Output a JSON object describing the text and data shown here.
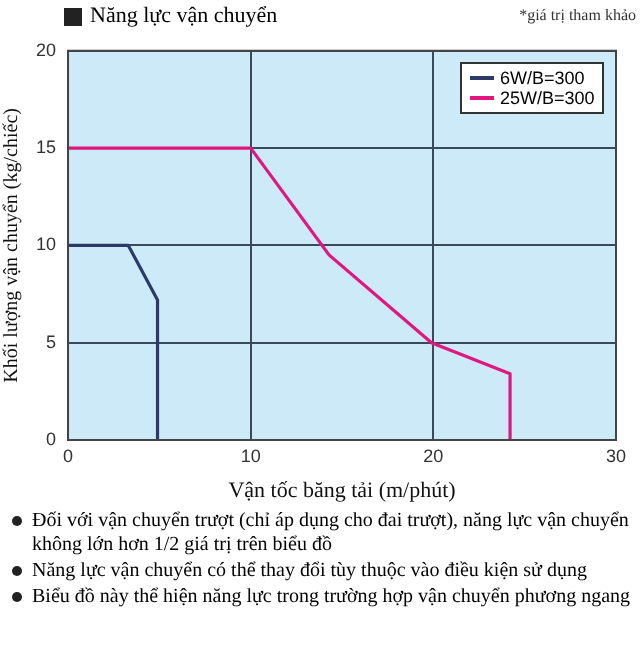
{
  "chart_data": {
    "type": "line",
    "title": "Năng lực vận chuyển",
    "xlabel": "Vận tốc băng tải (m/phút)",
    "ylabel": "Khối lượng vận chuyển (kg/chiếc)",
    "xlim": [
      0,
      30
    ],
    "xticks": [
      0,
      10,
      20,
      30
    ],
    "ylim": [
      0,
      20
    ],
    "yticks": [
      0,
      5,
      10,
      15,
      20
    ],
    "grid": true,
    "legend": "top right",
    "marker": "none",
    "line_style": "solid",
    "series": [
      {
        "name": "6W/B=300",
        "color": "#2b3a67",
        "x": [
          0,
          3.3,
          4.9,
          4.9
        ],
        "values": [
          10,
          10,
          7.2,
          0
        ]
      },
      {
        "name": "25W/B=300",
        "color": "#e0177f",
        "x": [
          0,
          10,
          14.3,
          19.9,
          24.2,
          24.2
        ],
        "values": [
          15,
          15,
          9.5,
          5.0,
          3.4,
          0
        ]
      }
    ],
    "annotations": [
      "*giá trị tham khảo",
      "Đối với vận chuyển trượt (chỉ áp dụng cho đai trượt), năng lực vận chuyển không lớn hơn 1/2 giá trị trên biểu đồ",
      "Năng lực vận chuyển có thể thay đổi tùy thuộc vào điều kiện sử dụng",
      "Biểu đồ này thể hiện năng lực trong trường hợp vận chuyển  phương ngang"
    ]
  }
}
